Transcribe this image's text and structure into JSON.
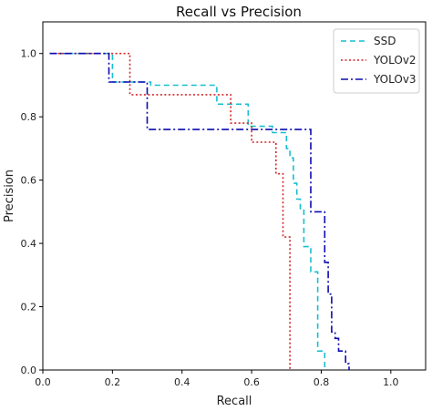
{
  "chart_data": {
    "type": "line",
    "title": "Recall vs Precision",
    "xlabel": "Recall",
    "ylabel": "Precision",
    "xlim": [
      0.0,
      1.1
    ],
    "ylim": [
      0.0,
      1.1
    ],
    "xticks": [
      "0.0",
      "0.2",
      "0.4",
      "0.6",
      "0.8",
      "1.0"
    ],
    "yticks": [
      "0.0",
      "0.2",
      "0.4",
      "0.6",
      "0.8",
      "1.0"
    ],
    "xtick_values": [
      0.0,
      0.2,
      0.4,
      0.6,
      0.8,
      1.0
    ],
    "ytick_values": [
      0.0,
      0.2,
      0.4,
      0.6,
      0.8,
      1.0
    ],
    "grid": false,
    "legend_position": "top-right",
    "series": [
      {
        "name": "SSD",
        "color": "#17bfcf",
        "dash": "dashed",
        "x": [
          0.02,
          0.2,
          0.2,
          0.31,
          0.31,
          0.5,
          0.5,
          0.59,
          0.59,
          0.66,
          0.66,
          0.7,
          0.7,
          0.71,
          0.71,
          0.72,
          0.72,
          0.73,
          0.73,
          0.74,
          0.74,
          0.75,
          0.75,
          0.77,
          0.77,
          0.79,
          0.79,
          0.81,
          0.81
        ],
        "y": [
          1.0,
          1.0,
          0.91,
          0.91,
          0.9,
          0.9,
          0.84,
          0.84,
          0.77,
          0.77,
          0.75,
          0.75,
          0.7,
          0.7,
          0.67,
          0.67,
          0.59,
          0.59,
          0.54,
          0.54,
          0.51,
          0.51,
          0.39,
          0.39,
          0.31,
          0.31,
          0.06,
          0.06,
          0.0
        ]
      },
      {
        "name": "YOLOv2",
        "color": "#d62728",
        "dash": "dotted",
        "x": [
          0.02,
          0.25,
          0.25,
          0.54,
          0.54,
          0.6,
          0.6,
          0.67,
          0.67,
          0.69,
          0.69,
          0.71,
          0.71
        ],
        "y": [
          1.0,
          1.0,
          0.87,
          0.87,
          0.78,
          0.78,
          0.72,
          0.72,
          0.62,
          0.62,
          0.42,
          0.42,
          0.0
        ]
      },
      {
        "name": "YOLOv3",
        "color": "#0b0bb0",
        "dash": "dashdot",
        "x": [
          0.02,
          0.19,
          0.19,
          0.3,
          0.3,
          0.77,
          0.77,
          0.81,
          0.81,
          0.82,
          0.82,
          0.83,
          0.83,
          0.84,
          0.84,
          0.85,
          0.85,
          0.87,
          0.87,
          0.88,
          0.88
        ],
        "y": [
          1.0,
          1.0,
          0.91,
          0.91,
          0.76,
          0.76,
          0.5,
          0.5,
          0.34,
          0.34,
          0.24,
          0.24,
          0.12,
          0.12,
          0.1,
          0.1,
          0.06,
          0.06,
          0.02,
          0.02,
          0.0
        ]
      }
    ]
  }
}
